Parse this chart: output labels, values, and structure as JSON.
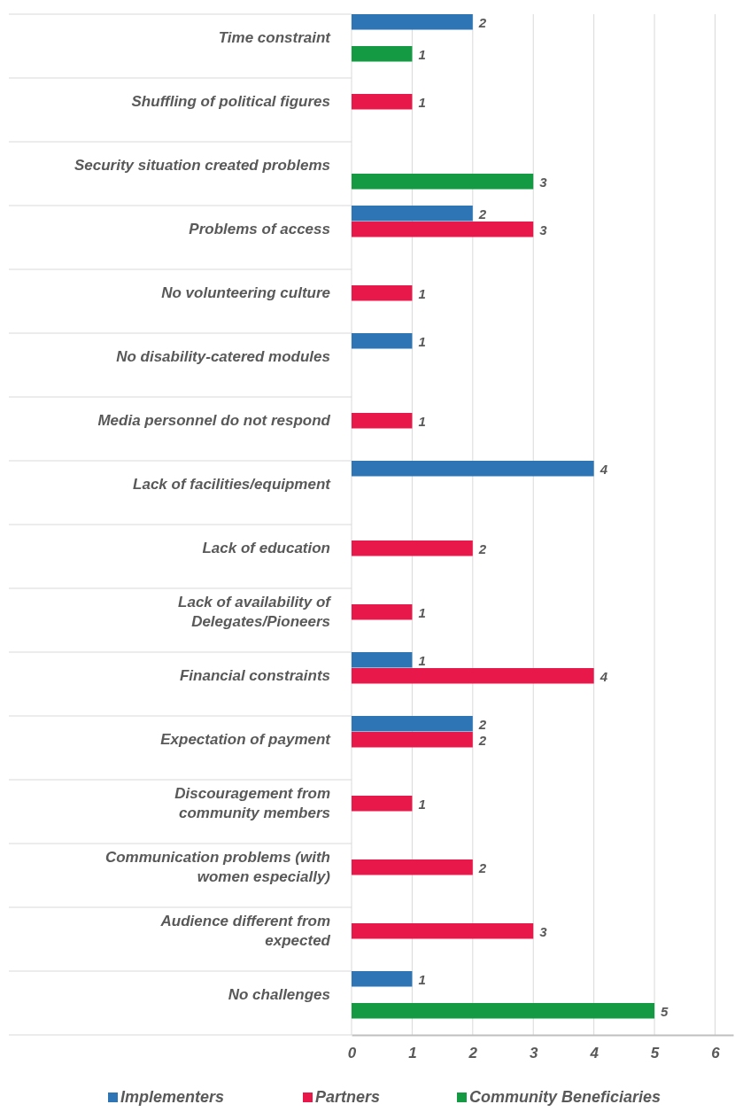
{
  "chart_data": {
    "type": "bar",
    "orientation": "horizontal",
    "categories": [
      "Time constraint",
      "Shuffling of political figures",
      "Security situation created problems",
      "Problems of access",
      "No volunteering culture",
      "No disability-catered modules",
      "Media personnel do not respond",
      "Lack of facilities/equipment",
      "Lack of education",
      "Lack of availability of\nDelegates/Pioneers",
      "Financial constraints",
      "Expectation of payment",
      "Discouragement from\ncommunity members",
      "Communication problems (with\nwomen especially)",
      "Audience different from\nexpected",
      "No challenges"
    ],
    "series": [
      {
        "name": "Implementers",
        "color": "#2e75b6",
        "values": [
          2,
          null,
          null,
          2,
          null,
          1,
          null,
          4,
          null,
          null,
          1,
          2,
          null,
          null,
          null,
          1
        ]
      },
      {
        "name": "Partners",
        "color": "#e8194a",
        "values": [
          null,
          1,
          null,
          3,
          1,
          null,
          1,
          null,
          2,
          1,
          4,
          2,
          1,
          2,
          3,
          null
        ]
      },
      {
        "name": "Community Beneficiaries",
        "color": "#139a43",
        "values": [
          1,
          null,
          3,
          null,
          null,
          null,
          null,
          null,
          null,
          null,
          null,
          null,
          null,
          null,
          null,
          5
        ]
      }
    ],
    "xlim": [
      0,
      6.3
    ],
    "xticks": [
      0,
      1,
      2,
      3,
      4,
      5,
      6
    ],
    "grid": "x",
    "legend": "bottom",
    "data_labels": true
  }
}
